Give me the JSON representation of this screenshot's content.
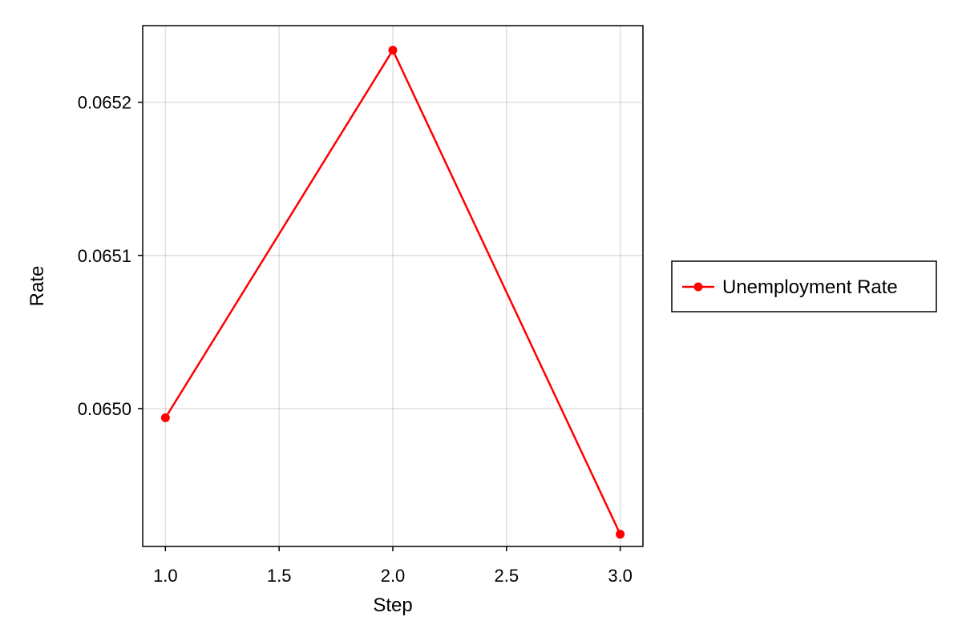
{
  "chart_data": {
    "type": "line",
    "title": "",
    "xlabel": "Step",
    "ylabel": "Rate",
    "xlim": [
      0.9,
      3.1
    ],
    "ylim": [
      0.06491,
      0.06525
    ],
    "x_ticks": [
      1.0,
      1.5,
      2.0,
      2.5,
      3.0
    ],
    "x_tick_labels": [
      "1.0",
      "1.5",
      "2.0",
      "2.5",
      "3.0"
    ],
    "y_ticks": [
      0.065,
      0.0651,
      0.0652
    ],
    "y_tick_labels": [
      "0.0650",
      "0.0651",
      "0.0652"
    ],
    "grid": true,
    "legend_position": "right",
    "series": [
      {
        "name": "Unemployment Rate",
        "color": "#ff0000",
        "marker": "circle",
        "x": [
          1.0,
          2.0,
          3.0
        ],
        "y": [
          0.064994,
          0.065234,
          0.064918
        ]
      }
    ]
  }
}
